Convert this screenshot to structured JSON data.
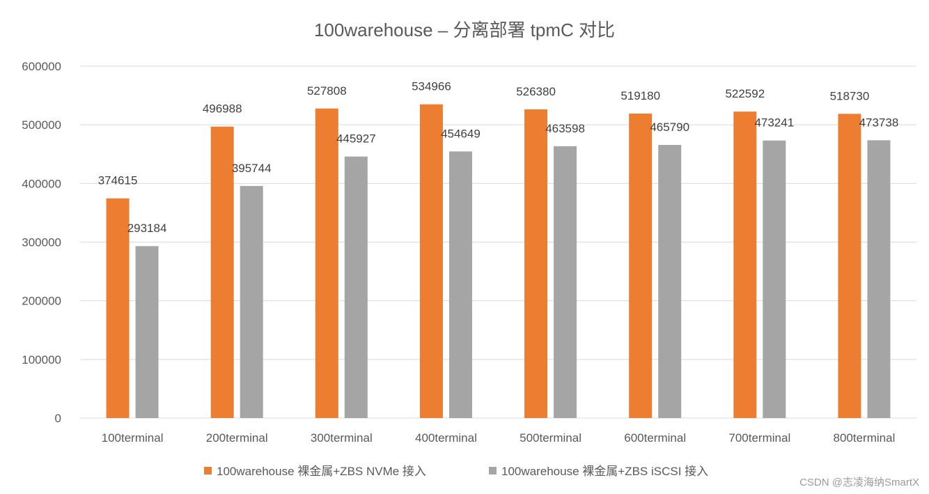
{
  "chart_data": {
    "type": "bar",
    "title": "100warehouse – 分离部署 tpmC 对比",
    "xlabel": "",
    "ylabel": "",
    "ylim": [
      0,
      600000
    ],
    "yticks": [
      0,
      100000,
      200000,
      300000,
      400000,
      500000,
      600000
    ],
    "ytick_labels": [
      "0",
      "100000",
      "200000",
      "300000",
      "400000",
      "500000",
      "600000"
    ],
    "grid": true,
    "legend_position": "bottom",
    "categories": [
      "100terminal",
      "200terminal",
      "300terminal",
      "400terminal",
      "500terminal",
      "600terminal",
      "700terminal",
      "800terminal"
    ],
    "series": [
      {
        "name": "100warehouse 裸金属+ZBS NVMe 接入",
        "color": "#ED7D31",
        "values": [
          374615,
          496988,
          527808,
          534966,
          526380,
          519180,
          522592,
          518730
        ],
        "labels": [
          "374615",
          "496988",
          "527808",
          "534966",
          "526380",
          "519180",
          "522592",
          "518730"
        ]
      },
      {
        "name": "100warehouse 裸金属+ZBS iSCSI 接入",
        "color": "#A5A5A5",
        "values": [
          293184,
          395744,
          445927,
          454649,
          463598,
          465790,
          473241,
          473738
        ],
        "labels": [
          "293184",
          "395744",
          "445927",
          "454649",
          "463598",
          "465790",
          "473241",
          "473738"
        ]
      }
    ]
  },
  "watermark": "CSDN @志凌海纳SmartX",
  "colors": {
    "grid": "#D9D9D9",
    "text": "#595959"
  }
}
